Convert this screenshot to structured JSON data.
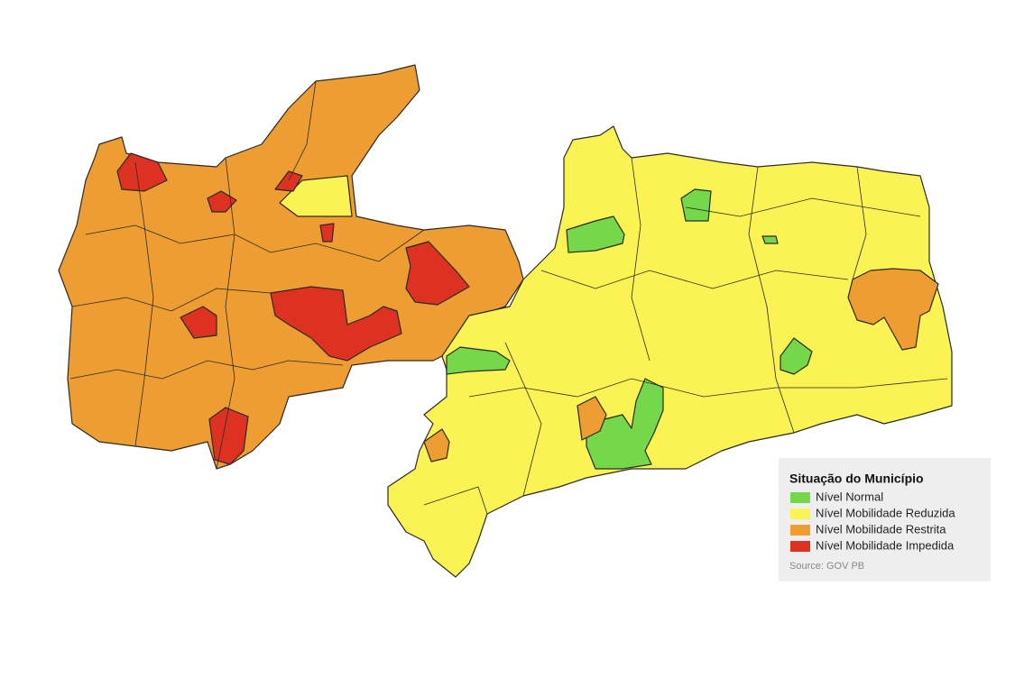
{
  "legend": {
    "title": "Situação do Município",
    "items": [
      {
        "label": "Nível Normal",
        "color": "#74d84a"
      },
      {
        "label": "Nível Mobilidade Reduzida",
        "color": "#fbf253"
      },
      {
        "label": "Nível Mobilidade Restrita",
        "color": "#ee9d33"
      },
      {
        "label": "Nível Mobilidade Impedida",
        "color": "#dd3222"
      }
    ],
    "source": "Source: GOV PB"
  }
}
